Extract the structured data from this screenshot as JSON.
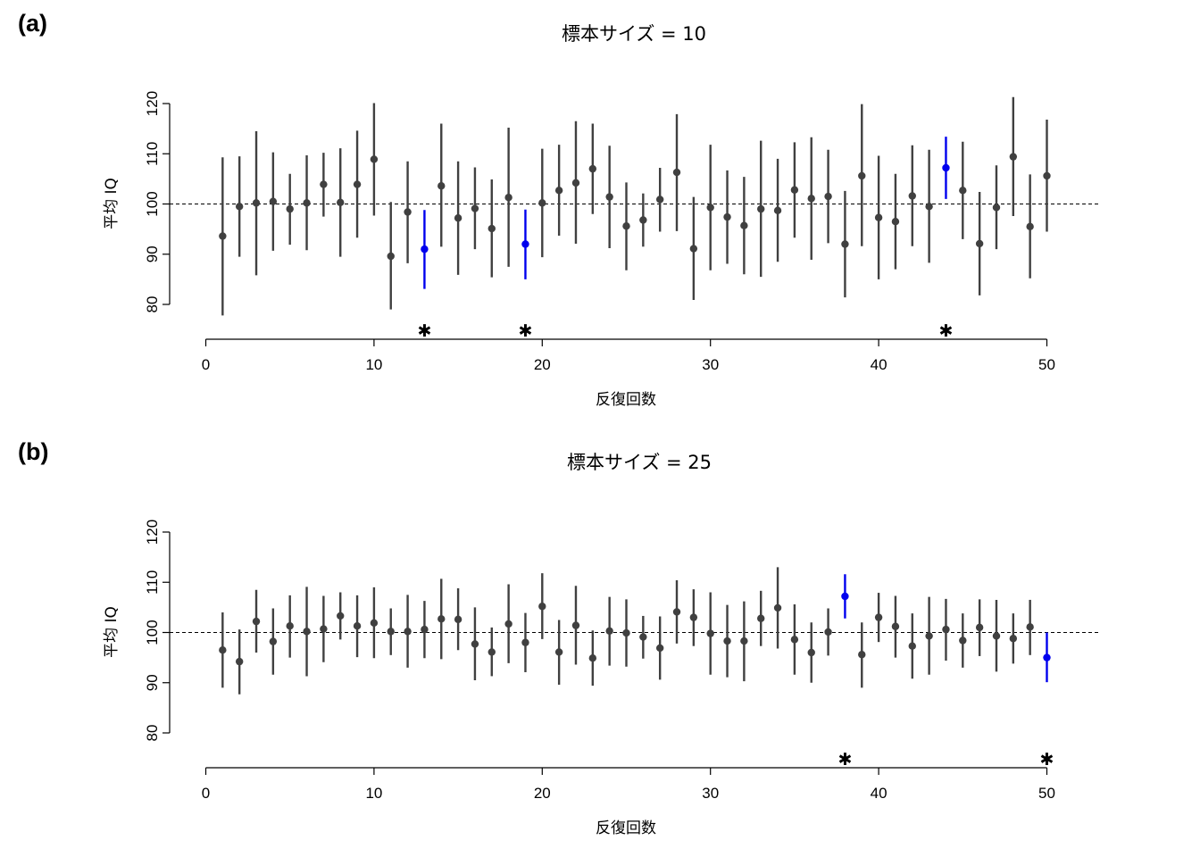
{
  "chart_data": [
    {
      "type": "scatter",
      "panel_label": "(a)",
      "title": "標本サイズ = 10",
      "xlabel": "反復回数",
      "ylabel": "平均 IQ",
      "xlim": [
        0,
        50
      ],
      "ylim": [
        80,
        120
      ],
      "x_ticks": [
        0,
        10,
        20,
        30,
        40,
        50
      ],
      "y_ticks": [
        80,
        90,
        100,
        110,
        120
      ],
      "reference_line": 100,
      "grid": false,
      "colors": {
        "normal": "#404040",
        "highlight": "#0000ee"
      },
      "marker_symbol": "✱",
      "points": [
        {
          "x": 1,
          "mean": 93.6,
          "lo": 77.8,
          "hi": 109.3
        },
        {
          "x": 2,
          "mean": 99.5,
          "lo": 89.5,
          "hi": 109.5
        },
        {
          "x": 3,
          "mean": 100.2,
          "lo": 85.8,
          "hi": 114.5
        },
        {
          "x": 4,
          "mean": 100.5,
          "lo": 90.7,
          "hi": 110.3
        },
        {
          "x": 5,
          "mean": 99.0,
          "lo": 91.9,
          "hi": 106.0
        },
        {
          "x": 6,
          "mean": 100.2,
          "lo": 90.8,
          "hi": 109.7
        },
        {
          "x": 7,
          "mean": 103.9,
          "lo": 97.5,
          "hi": 110.2
        },
        {
          "x": 8,
          "mean": 100.3,
          "lo": 89.5,
          "hi": 111.1
        },
        {
          "x": 9,
          "mean": 103.9,
          "lo": 93.3,
          "hi": 114.6
        },
        {
          "x": 10,
          "mean": 108.9,
          "lo": 97.7,
          "hi": 120.1
        },
        {
          "x": 11,
          "mean": 89.6,
          "lo": 79.0,
          "hi": 100.4
        },
        {
          "x": 12,
          "mean": 98.4,
          "lo": 88.2,
          "hi": 108.5
        },
        {
          "x": 13,
          "mean": 91.0,
          "lo": 83.1,
          "hi": 98.8,
          "highlight": true
        },
        {
          "x": 14,
          "mean": 103.6,
          "lo": 91.5,
          "hi": 116.0
        },
        {
          "x": 15,
          "mean": 97.2,
          "lo": 85.9,
          "hi": 108.5
        },
        {
          "x": 16,
          "mean": 99.1,
          "lo": 91.0,
          "hi": 107.3
        },
        {
          "x": 17,
          "mean": 95.1,
          "lo": 85.4,
          "hi": 104.9
        },
        {
          "x": 18,
          "mean": 101.3,
          "lo": 87.5,
          "hi": 115.2
        },
        {
          "x": 19,
          "mean": 92.0,
          "lo": 85.0,
          "hi": 98.9,
          "highlight": true
        },
        {
          "x": 20,
          "mean": 100.2,
          "lo": 89.4,
          "hi": 111.0
        },
        {
          "x": 21,
          "mean": 102.7,
          "lo": 93.7,
          "hi": 111.8
        },
        {
          "x": 22,
          "mean": 104.2,
          "lo": 92.1,
          "hi": 116.5
        },
        {
          "x": 23,
          "mean": 107.0,
          "lo": 98.0,
          "hi": 116.0
        },
        {
          "x": 24,
          "mean": 101.4,
          "lo": 91.2,
          "hi": 111.6
        },
        {
          "x": 25,
          "mean": 95.6,
          "lo": 86.8,
          "hi": 104.3
        },
        {
          "x": 26,
          "mean": 96.8,
          "lo": 91.5,
          "hi": 102.1
        },
        {
          "x": 27,
          "mean": 100.9,
          "lo": 94.5,
          "hi": 107.2
        },
        {
          "x": 28,
          "mean": 106.3,
          "lo": 94.6,
          "hi": 117.9
        },
        {
          "x": 29,
          "mean": 91.1,
          "lo": 80.9,
          "hi": 101.4
        },
        {
          "x": 30,
          "mean": 99.3,
          "lo": 86.8,
          "hi": 111.8
        },
        {
          "x": 31,
          "mean": 97.4,
          "lo": 88.1,
          "hi": 106.7
        },
        {
          "x": 32,
          "mean": 95.7,
          "lo": 86.0,
          "hi": 105.4
        },
        {
          "x": 33,
          "mean": 99.0,
          "lo": 85.5,
          "hi": 112.6
        },
        {
          "x": 34,
          "mean": 98.7,
          "lo": 88.5,
          "hi": 109.0
        },
        {
          "x": 35,
          "mean": 102.8,
          "lo": 93.3,
          "hi": 112.3
        },
        {
          "x": 36,
          "mean": 101.1,
          "lo": 88.9,
          "hi": 113.3
        },
        {
          "x": 37,
          "mean": 101.5,
          "lo": 92.2,
          "hi": 110.8
        },
        {
          "x": 38,
          "mean": 92.0,
          "lo": 81.4,
          "hi": 102.6
        },
        {
          "x": 39,
          "mean": 105.6,
          "lo": 91.6,
          "hi": 119.9
        },
        {
          "x": 40,
          "mean": 97.3,
          "lo": 85.0,
          "hi": 109.6
        },
        {
          "x": 41,
          "mean": 96.5,
          "lo": 87.0,
          "hi": 106.0
        },
        {
          "x": 42,
          "mean": 101.6,
          "lo": 91.6,
          "hi": 111.7
        },
        {
          "x": 43,
          "mean": 99.5,
          "lo": 88.3,
          "hi": 110.8
        },
        {
          "x": 44,
          "mean": 107.2,
          "lo": 101.0,
          "hi": 113.4,
          "highlight": true
        },
        {
          "x": 45,
          "mean": 102.7,
          "lo": 93.0,
          "hi": 112.4
        },
        {
          "x": 46,
          "mean": 92.1,
          "lo": 81.8,
          "hi": 102.4
        },
        {
          "x": 47,
          "mean": 99.3,
          "lo": 91.0,
          "hi": 107.7
        },
        {
          "x": 48,
          "mean": 109.4,
          "lo": 97.6,
          "hi": 121.3
        },
        {
          "x": 49,
          "mean": 95.5,
          "lo": 85.2,
          "hi": 105.9
        },
        {
          "x": 50,
          "mean": 105.6,
          "lo": 94.5,
          "hi": 116.8
        }
      ]
    },
    {
      "type": "scatter",
      "panel_label": "(b)",
      "title": "標本サイズ = 25",
      "xlabel": "反復回数",
      "ylabel": "平均 IQ",
      "xlim": [
        0,
        50
      ],
      "ylim": [
        80,
        120
      ],
      "x_ticks": [
        0,
        10,
        20,
        30,
        40,
        50
      ],
      "y_ticks": [
        80,
        90,
        100,
        110,
        120
      ],
      "reference_line": 100,
      "grid": false,
      "colors": {
        "normal": "#404040",
        "highlight": "#0000ee"
      },
      "marker_symbol": "✱",
      "points": [
        {
          "x": 1,
          "mean": 96.5,
          "lo": 89.0,
          "hi": 104.0
        },
        {
          "x": 2,
          "mean": 94.2,
          "lo": 87.7,
          "hi": 100.6
        },
        {
          "x": 3,
          "mean": 102.2,
          "lo": 96.0,
          "hi": 108.5
        },
        {
          "x": 4,
          "mean": 98.2,
          "lo": 91.6,
          "hi": 104.8
        },
        {
          "x": 5,
          "mean": 101.3,
          "lo": 95.0,
          "hi": 107.4
        },
        {
          "x": 6,
          "mean": 100.2,
          "lo": 91.3,
          "hi": 109.1
        },
        {
          "x": 7,
          "mean": 100.7,
          "lo": 94.1,
          "hi": 107.3
        },
        {
          "x": 8,
          "mean": 103.3,
          "lo": 98.6,
          "hi": 108.0
        },
        {
          "x": 9,
          "mean": 101.3,
          "lo": 95.1,
          "hi": 107.4
        },
        {
          "x": 10,
          "mean": 101.9,
          "lo": 94.9,
          "hi": 109.0
        },
        {
          "x": 11,
          "mean": 100.2,
          "lo": 95.5,
          "hi": 104.8
        },
        {
          "x": 12,
          "mean": 100.2,
          "lo": 93.0,
          "hi": 107.5
        },
        {
          "x": 13,
          "mean": 100.6,
          "lo": 94.9,
          "hi": 106.3
        },
        {
          "x": 14,
          "mean": 102.7,
          "lo": 94.7,
          "hi": 110.7
        },
        {
          "x": 15,
          "mean": 102.6,
          "lo": 96.5,
          "hi": 108.8
        },
        {
          "x": 16,
          "mean": 97.7,
          "lo": 90.5,
          "hi": 105.0
        },
        {
          "x": 17,
          "mean": 96.1,
          "lo": 91.3,
          "hi": 101.0
        },
        {
          "x": 18,
          "mean": 101.7,
          "lo": 93.9,
          "hi": 109.6
        },
        {
          "x": 19,
          "mean": 98.0,
          "lo": 92.1,
          "hi": 103.9
        },
        {
          "x": 20,
          "mean": 105.2,
          "lo": 98.7,
          "hi": 111.8
        },
        {
          "x": 21,
          "mean": 96.1,
          "lo": 89.6,
          "hi": 102.5
        },
        {
          "x": 22,
          "mean": 101.4,
          "lo": 93.6,
          "hi": 109.3
        },
        {
          "x": 23,
          "mean": 94.9,
          "lo": 89.4,
          "hi": 100.4
        },
        {
          "x": 24,
          "mean": 100.3,
          "lo": 93.4,
          "hi": 107.1
        },
        {
          "x": 25,
          "mean": 99.9,
          "lo": 93.2,
          "hi": 106.6
        },
        {
          "x": 26,
          "mean": 99.1,
          "lo": 94.8,
          "hi": 103.3
        },
        {
          "x": 27,
          "mean": 96.9,
          "lo": 90.6,
          "hi": 103.2
        },
        {
          "x": 28,
          "mean": 104.1,
          "lo": 97.8,
          "hi": 110.4
        },
        {
          "x": 29,
          "mean": 103.0,
          "lo": 97.3,
          "hi": 108.6
        },
        {
          "x": 30,
          "mean": 99.8,
          "lo": 91.6,
          "hi": 108.0
        },
        {
          "x": 31,
          "mean": 98.3,
          "lo": 91.1,
          "hi": 105.5
        },
        {
          "x": 32,
          "mean": 98.3,
          "lo": 90.3,
          "hi": 106.2
        },
        {
          "x": 33,
          "mean": 102.8,
          "lo": 97.3,
          "hi": 108.3
        },
        {
          "x": 34,
          "mean": 104.9,
          "lo": 96.8,
          "hi": 113.0
        },
        {
          "x": 35,
          "mean": 98.6,
          "lo": 91.6,
          "hi": 105.6
        },
        {
          "x": 36,
          "mean": 96.0,
          "lo": 90.0,
          "hi": 102.0
        },
        {
          "x": 37,
          "mean": 100.1,
          "lo": 95.4,
          "hi": 104.8
        },
        {
          "x": 38,
          "mean": 107.2,
          "lo": 102.8,
          "hi": 111.6,
          "highlight": true
        },
        {
          "x": 39,
          "mean": 95.6,
          "lo": 89.0,
          "hi": 102.0
        },
        {
          "x": 40,
          "mean": 103.0,
          "lo": 98.1,
          "hi": 107.9
        },
        {
          "x": 41,
          "mean": 101.2,
          "lo": 95.0,
          "hi": 107.3
        },
        {
          "x": 42,
          "mean": 97.3,
          "lo": 90.8,
          "hi": 103.8
        },
        {
          "x": 43,
          "mean": 99.3,
          "lo": 91.6,
          "hi": 107.1
        },
        {
          "x": 44,
          "mean": 100.6,
          "lo": 94.4,
          "hi": 106.7
        },
        {
          "x": 45,
          "mean": 98.4,
          "lo": 93.0,
          "hi": 103.8
        },
        {
          "x": 46,
          "mean": 101.0,
          "lo": 95.3,
          "hi": 106.6
        },
        {
          "x": 47,
          "mean": 99.3,
          "lo": 92.2,
          "hi": 106.5
        },
        {
          "x": 48,
          "mean": 98.8,
          "lo": 93.8,
          "hi": 103.8
        },
        {
          "x": 49,
          "mean": 101.1,
          "lo": 95.5,
          "hi": 106.5
        },
        {
          "x": 50,
          "mean": 95.0,
          "lo": 90.1,
          "hi": 100.0,
          "highlight": true
        }
      ]
    }
  ]
}
